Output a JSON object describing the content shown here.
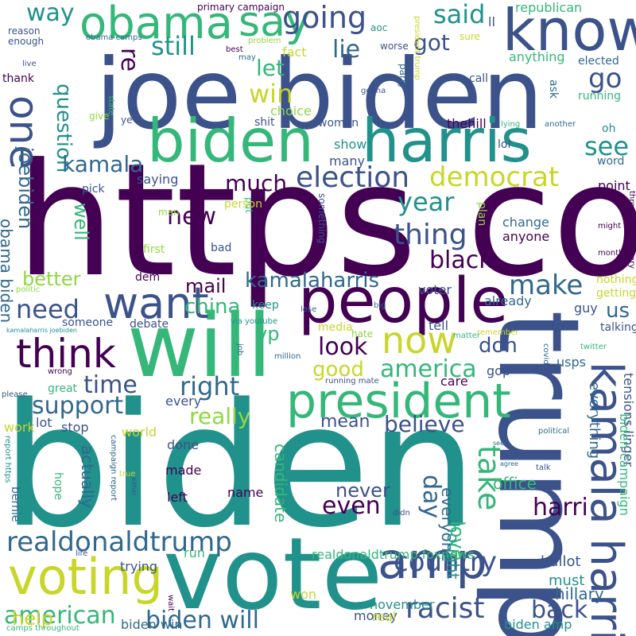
{
  "palette": {
    "background": "#ffffff",
    "dark_purple": "#440154",
    "indigo": "#3b528b",
    "blue": "#31688e",
    "teal": "#21918c",
    "green": "#35b779",
    "lime": "#90d743",
    "yellow": "#c8d62a"
  },
  "words": [
    {
      "text": "https co",
      "color": "#440154",
      "rot": 0
    },
    {
      "text": "biden",
      "color": "#21918c",
      "rot": 0
    },
    {
      "text": "joe biden",
      "color": "#3b528b",
      "rot": 0
    },
    {
      "text": "trump",
      "color": "#3b528b",
      "rot": 90
    },
    {
      "text": "vote",
      "color": "#21918c",
      "rot": 0
    },
    {
      "text": "will",
      "color": "#35b779",
      "rot": 0
    },
    {
      "text": "people",
      "color": "#440154",
      "rot": 0
    },
    {
      "text": "biden",
      "color": "#35b779",
      "rot": 0
    },
    {
      "text": "harris",
      "color": "#21918c",
      "rot": 0
    },
    {
      "text": "know",
      "color": "#3b528b",
      "rot": 0
    },
    {
      "text": "president",
      "color": "#35b779",
      "rot": 0
    },
    {
      "text": "amp",
      "color": "#3b528b",
      "rot": 0
    },
    {
      "text": "voting",
      "color": "#c8d62a",
      "rot": 0
    },
    {
      "text": "kamala harri",
      "color": "#3b528b",
      "rot": 90
    },
    {
      "text": "obama",
      "color": "#35b779",
      "rot": 0
    },
    {
      "text": "say",
      "color": "#35b779",
      "rot": 0
    },
    {
      "text": "want",
      "color": "#3b528b",
      "rot": 0
    },
    {
      "text": "think",
      "color": "#440154",
      "rot": 0
    },
    {
      "text": "now",
      "color": "#c8d62a",
      "rot": 0
    },
    {
      "text": "one",
      "color": "#3b528b",
      "rot": 90
    },
    {
      "text": "realdonaldtrump",
      "color": "#31688e",
      "rot": 0
    },
    {
      "text": "american",
      "color": "#35b779",
      "rot": 0
    },
    {
      "text": "racist",
      "color": "#3b528b",
      "rot": 0
    },
    {
      "text": "country",
      "color": "#3b528b",
      "rot": 0
    },
    {
      "text": "election",
      "color": "#3b528b",
      "rot": 0
    },
    {
      "text": "democrat",
      "color": "#c8d62a",
      "rot": 0
    },
    {
      "text": "thing",
      "color": "#3b528b",
      "rot": 0
    },
    {
      "text": "year",
      "color": "#21918c",
      "rot": 0
    },
    {
      "text": "going",
      "color": "#3b528b",
      "rot": 0
    },
    {
      "text": "said",
      "color": "#21918c",
      "rot": 0
    },
    {
      "text": "way",
      "color": "#21918c",
      "rot": 0
    },
    {
      "text": "still",
      "color": "#21918c",
      "rot": 0
    },
    {
      "text": "got",
      "color": "#3b528b",
      "rot": 0
    },
    {
      "text": "lie",
      "color": "#31688e",
      "rot": 0
    },
    {
      "text": "let",
      "color": "#35b779",
      "rot": 0
    },
    {
      "text": "win",
      "color": "#c8d62a",
      "rot": 0
    },
    {
      "text": "go",
      "color": "#3b528b",
      "rot": 0
    },
    {
      "text": "re",
      "color": "#440154",
      "rot": 90
    },
    {
      "text": "see",
      "color": "#21918c",
      "rot": 0
    },
    {
      "text": "question",
      "color": "#21918c",
      "rot": 90
    },
    {
      "text": "joebiden",
      "color": "#31688e",
      "rot": 90
    },
    {
      "text": "kamala",
      "color": "#31688e",
      "rot": 0
    },
    {
      "text": "much",
      "color": "#440154",
      "rot": 0
    },
    {
      "text": "new",
      "color": "#440154",
      "rot": 0
    },
    {
      "text": "well",
      "color": "#35b779",
      "rot": 90
    },
    {
      "text": "black",
      "color": "#440154",
      "rot": 0
    },
    {
      "text": "make",
      "color": "#31688e",
      "rot": 0
    },
    {
      "text": "kamalaharris",
      "color": "#31688e",
      "rot": 0
    },
    {
      "text": "mail",
      "color": "#440154",
      "rot": 0
    },
    {
      "text": "china",
      "color": "#35b779",
      "rot": 0
    },
    {
      "text": "need",
      "color": "#3b528b",
      "rot": 0
    },
    {
      "text": "better",
      "color": "#90d743",
      "rot": 0
    },
    {
      "text": "vp",
      "color": "#35b779",
      "rot": 0
    },
    {
      "text": "us",
      "color": "#31688e",
      "rot": 0
    },
    {
      "text": "look",
      "color": "#440154",
      "rot": 0
    },
    {
      "text": "don",
      "color": "#3b528b",
      "rot": 0
    },
    {
      "text": "good",
      "color": "#c8d62a",
      "rot": 0
    },
    {
      "text": "america",
      "color": "#35b779",
      "rot": 0
    },
    {
      "text": "time",
      "color": "#3b528b",
      "rot": 0
    },
    {
      "text": "right",
      "color": "#31688e",
      "rot": 0
    },
    {
      "text": "support",
      "color": "#31688e",
      "rot": 0
    },
    {
      "text": "really",
      "color": "#90d743",
      "rot": 0
    },
    {
      "text": "believe",
      "color": "#3b528b",
      "rot": 0
    },
    {
      "text": "even",
      "color": "#440154",
      "rot": 0
    },
    {
      "text": "take",
      "color": "#35b779",
      "rot": 90
    },
    {
      "text": "harri",
      "color": "#440154",
      "rot": 0
    },
    {
      "text": "back",
      "color": "#3b528b",
      "rot": 0
    },
    {
      "text": "biden will",
      "color": "#31688e",
      "rot": 0
    },
    {
      "text": "help",
      "color": "#c8d62a",
      "rot": 0
    },
    {
      "text": "candidate",
      "color": "#35b779",
      "rot": 90
    },
    {
      "text": "actually",
      "color": "#31688e",
      "rot": 90
    },
    {
      "text": "mean",
      "color": "#3b528b",
      "rot": 0
    },
    {
      "text": "never",
      "color": "#3b528b",
      "rot": 0
    },
    {
      "text": "obama biden",
      "color": "#31688e",
      "rot": 90
    },
    {
      "text": "done",
      "color": "#3b528b",
      "rot": 0
    },
    {
      "text": "made",
      "color": "#440154",
      "rot": 0
    },
    {
      "text": "left",
      "color": "#440154",
      "rot": 0
    },
    {
      "text": "name",
      "color": "#440154",
      "rot": 0
    },
    {
      "text": "trying",
      "color": "#3b528b",
      "rot": 0
    },
    {
      "text": "hillary",
      "color": "#31688e",
      "rot": 0
    },
    {
      "text": "must",
      "color": "#21918c",
      "rot": 0
    },
    {
      "text": "day",
      "color": "#31688e",
      "rot": 90
    },
    {
      "text": "ballot",
      "color": "#3b528b",
      "rot": 0
    },
    {
      "text": "office",
      "color": "#35b779",
      "rot": 0
    },
    {
      "text": "everyone",
      "color": "#31688e",
      "rot": 90
    },
    {
      "text": "thought",
      "color": "#21918c",
      "rot": 90
    },
    {
      "text": "love",
      "color": "#35b779",
      "rot": 90
    },
    {
      "text": "won",
      "color": "#c8d62a",
      "rot": 0
    },
    {
      "text": "november",
      "color": "#21918c",
      "rot": 0
    },
    {
      "text": "money",
      "color": "#3b528b",
      "rot": 0
    },
    {
      "text": "real",
      "color": "#c8d62a",
      "rot": 0
    },
    {
      "text": "biden amp",
      "color": "#21918c",
      "rot": 0
    },
    {
      "text": "biden win",
      "color": "#31688e",
      "rot": 0
    },
    {
      "text": "run",
      "color": "#35b779",
      "rot": 0
    },
    {
      "text": "realdonaldtrump foxnews",
      "color": "#35b779",
      "rot": 0
    },
    {
      "text": "republican",
      "color": "#35b779",
      "rot": 0
    },
    {
      "text": "primary campaign",
      "color": "#440154",
      "rot": 0
    },
    {
      "text": "reason",
      "color": "#3b528b",
      "rot": 0
    },
    {
      "text": "enough",
      "color": "#3b528b",
      "rot": 0
    },
    {
      "text": "obama camps",
      "color": "#31688e",
      "rot": 0
    },
    {
      "text": "aoc",
      "color": "#21918c",
      "rot": 0
    },
    {
      "text": "sure",
      "color": "#c8d62a",
      "rot": 0
    },
    {
      "text": "ll",
      "color": "#3b528b",
      "rot": 0
    },
    {
      "text": "worse",
      "color": "#3b528b",
      "rot": 0
    },
    {
      "text": "problem",
      "color": "#90d743",
      "rot": 0
    },
    {
      "text": "fact",
      "color": "#c8d62a",
      "rot": 0
    },
    {
      "text": "best",
      "color": "#440154",
      "rot": 0
    },
    {
      "text": "may",
      "color": "#31688e",
      "rot": 0
    },
    {
      "text": "live",
      "color": "#3b528b",
      "rot": 0
    },
    {
      "text": "call",
      "color": "#3b528b",
      "rot": 0
    },
    {
      "text": "anything",
      "color": "#35b779",
      "rot": 0
    },
    {
      "text": "elected",
      "color": "#31688e",
      "rot": 0
    },
    {
      "text": "thank",
      "color": "#440154",
      "rot": 0
    },
    {
      "text": "state",
      "color": "#35b779",
      "rot": 90
    },
    {
      "text": "give",
      "color": "#90d743",
      "rot": 0
    },
    {
      "text": "ye",
      "color": "#3b528b",
      "rot": 0
    },
    {
      "text": "choice",
      "color": "#90d743",
      "rot": 0
    },
    {
      "text": "shit",
      "color": "#3b528b",
      "rot": 0
    },
    {
      "text": "party",
      "color": "#31688e",
      "rot": 90
    },
    {
      "text": "gonna",
      "color": "#3b528b",
      "rot": 0
    },
    {
      "text": "president trump",
      "color": "#c8d62a",
      "rot": 90
    },
    {
      "text": "ask",
      "color": "#31688e",
      "rot": 90
    },
    {
      "text": "running",
      "color": "#35b779",
      "rot": 0
    },
    {
      "text": "women",
      "color": "#3b528b",
      "rot": 0
    },
    {
      "text": "thehill",
      "color": "#440154",
      "rot": 0
    },
    {
      "text": "lying",
      "color": "#35b779",
      "rot": 0
    },
    {
      "text": "another",
      "color": "#31688e",
      "rot": 0
    },
    {
      "text": "oh",
      "color": "#21918c",
      "rot": 0
    },
    {
      "text": "word",
      "color": "#31688e",
      "rot": 0
    },
    {
      "text": "lol",
      "color": "#3b528b",
      "rot": 0
    },
    {
      "text": "show",
      "color": "#21918c",
      "rot": 0
    },
    {
      "text": "many",
      "color": "#3b528b",
      "rot": 0
    },
    {
      "text": "saying",
      "color": "#3b528b",
      "rot": 0
    },
    {
      "text": "pick",
      "color": "#3b528b",
      "rot": 0
    },
    {
      "text": "point",
      "color": "#440154",
      "rot": 0
    },
    {
      "text": "throughout primary",
      "color": "#440154",
      "rot": 90
    },
    {
      "text": "might",
      "color": "#440154",
      "rot": 0
    },
    {
      "text": "month",
      "color": "#440154",
      "rot": 0
    },
    {
      "text": "plan",
      "color": "#90d743",
      "rot": 90
    },
    {
      "text": "something",
      "color": "#3b528b",
      "rot": 90
    },
    {
      "text": "put",
      "color": "#35b779",
      "rot": 90
    },
    {
      "text": "man",
      "color": "#90d743",
      "rot": 0
    },
    {
      "text": "person",
      "color": "#c8d62a",
      "rot": 0
    },
    {
      "text": "change",
      "color": "#31688e",
      "rot": 0
    },
    {
      "text": "anyone",
      "color": "#440154",
      "rot": 0
    },
    {
      "text": "first",
      "color": "#90d743",
      "rot": 0
    },
    {
      "text": "bad",
      "color": "#3b528b",
      "rot": 0
    },
    {
      "text": "dem",
      "color": "#440154",
      "rot": 0
    },
    {
      "text": "nothing",
      "color": "#c8d62a",
      "rot": 0
    },
    {
      "text": "getting",
      "color": "#c8d62a",
      "rot": 0
    },
    {
      "text": "voter",
      "color": "#3b528b",
      "rot": 0
    },
    {
      "text": "guy",
      "color": "#3b528b",
      "rot": 0
    },
    {
      "text": "already",
      "color": "#31688e",
      "rot": 0
    },
    {
      "text": "keep",
      "color": "#21918c",
      "rot": 0
    },
    {
      "text": "someone",
      "color": "#3b528b",
      "rot": 0
    },
    {
      "text": "debate",
      "color": "#3b528b",
      "rot": 0
    },
    {
      "text": "via youtube",
      "color": "#21918c",
      "rot": 0
    },
    {
      "text": "politic",
      "color": "#90d743",
      "rot": 0
    },
    {
      "text": "lose",
      "color": "#31688e",
      "rot": 0
    },
    {
      "text": "big",
      "color": "#31688e",
      "rot": 0
    },
    {
      "text": "media",
      "color": "#c8d62a",
      "rot": 0
    },
    {
      "text": "tell",
      "color": "#3b528b",
      "rot": 0
    },
    {
      "text": "remember",
      "color": "#c8d62a",
      "rot": 0
    },
    {
      "text": "covid",
      "color": "#31688e",
      "rot": 90
    },
    {
      "text": "usps",
      "color": "#31688e",
      "rot": 0
    },
    {
      "text": "talking",
      "color": "#3b528b",
      "rot": 0
    },
    {
      "text": "hate",
      "color": "#90d743",
      "rot": 0
    },
    {
      "text": "million",
      "color": "#31688e",
      "rot": 0
    },
    {
      "text": "kamalaharris joebiden",
      "color": "#21918c",
      "rot": 0
    },
    {
      "text": "job",
      "color": "#31688e",
      "rot": 90
    },
    {
      "text": "matter",
      "color": "#35b779",
      "rot": 0
    },
    {
      "text": "twitter",
      "color": "#35b779",
      "rot": 0
    },
    {
      "text": "wrong",
      "color": "#440154",
      "rot": 0
    },
    {
      "text": "gop",
      "color": "#3b528b",
      "rot": 0
    },
    {
      "text": "please",
      "color": "#3b528b",
      "rot": 0
    },
    {
      "text": "great",
      "color": "#35b779",
      "rot": 0
    },
    {
      "text": "running mate",
      "color": "#3b528b",
      "rot": 0
    },
    {
      "text": "care",
      "color": "#440154",
      "rot": 0
    },
    {
      "text": "work",
      "color": "#c8d62a",
      "rot": 0
    },
    {
      "text": "every",
      "color": "#3b528b",
      "rot": 0
    },
    {
      "text": "lot",
      "color": "#3b528b",
      "rot": 0
    },
    {
      "text": "stop",
      "color": "#3b528b",
      "rot": 0
    },
    {
      "text": "world",
      "color": "#c8d62a",
      "rot": 0
    },
    {
      "text": "everything",
      "color": "#31688e",
      "rot": 90
    },
    {
      "text": "tensions linger",
      "color": "#3b528b",
      "rot": 90
    },
    {
      "text": "biden campaign",
      "color": "#35b779",
      "rot": 90
    },
    {
      "text": "political",
      "color": "#31688e",
      "rot": 0
    },
    {
      "text": "report https",
      "color": "#21918c",
      "rot": 90
    },
    {
      "text": "bernie",
      "color": "#31688e",
      "rot": 90
    },
    {
      "text": "hope",
      "color": "#35b779",
      "rot": 90
    },
    {
      "text": "true",
      "color": "#c8d62a",
      "rot": 0
    },
    {
      "text": "campaign report",
      "color": "#31688e",
      "rot": 90
    },
    {
      "text": "either",
      "color": "#3b528b",
      "rot": 90
    },
    {
      "text": "seem",
      "color": "#31688e",
      "rot": 0
    },
    {
      "text": "agree",
      "color": "#31688e",
      "rot": 0
    },
    {
      "text": "talk",
      "color": "#3b528b",
      "rot": 0
    },
    {
      "text": "didn",
      "color": "#3b528b",
      "rot": 0
    },
    {
      "text": "life",
      "color": "#3b528b",
      "rot": 0
    },
    {
      "text": "wait",
      "color": "#440154",
      "rot": 90
    },
    {
      "text": "camps throughout",
      "color": "#35b779",
      "rot": 0
    }
  ]
}
